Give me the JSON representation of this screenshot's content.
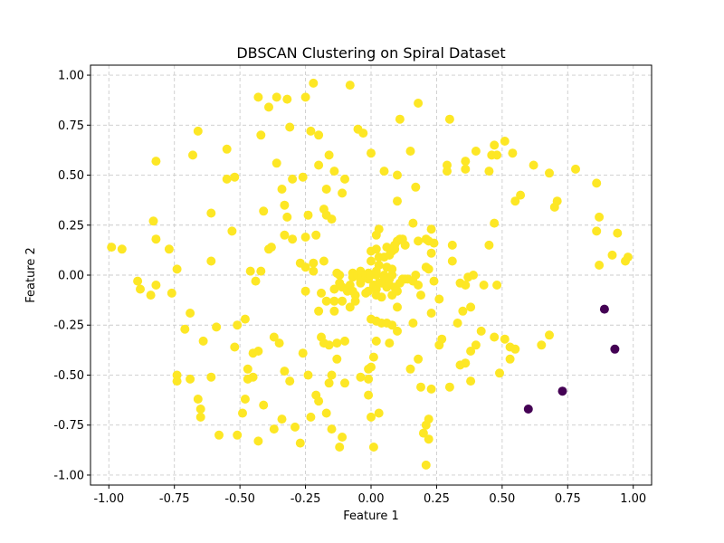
{
  "chart_data": {
    "type": "scatter",
    "title": "DBSCAN Clustering on Spiral Dataset",
    "xlabel": "Feature 1",
    "ylabel": "Feature 2",
    "xlim": [
      -1.07,
      1.07
    ],
    "ylim": [
      -1.05,
      1.05
    ],
    "xticks": [
      "-1.00",
      "-0.75",
      "-0.50",
      "-0.25",
      "0.00",
      "0.25",
      "0.50",
      "0.75",
      "1.00"
    ],
    "yticks": [
      "-1.00",
      "-0.75",
      "-0.50",
      "-0.25",
      "0.00",
      "0.25",
      "0.50",
      "0.75",
      "1.00"
    ],
    "grid": true,
    "legend": false,
    "series": [
      {
        "color": "#fde725",
        "points": [
          [
            -0.99,
            0.14
          ],
          [
            -0.95,
            0.13
          ],
          [
            -0.89,
            -0.03
          ],
          [
            -0.88,
            -0.07
          ],
          [
            -0.84,
            -0.1
          ],
          [
            -0.83,
            0.27
          ],
          [
            -0.82,
            0.18
          ],
          [
            -0.82,
            -0.05
          ],
          [
            -0.82,
            0.57
          ],
          [
            -0.77,
            0.13
          ],
          [
            -0.76,
            -0.09
          ],
          [
            -0.74,
            0.03
          ],
          [
            -0.74,
            -0.5
          ],
          [
            -0.74,
            -0.53
          ],
          [
            -0.71,
            -0.27
          ],
          [
            -0.69,
            -0.52
          ],
          [
            -0.69,
            -0.19
          ],
          [
            -0.68,
            0.6
          ],
          [
            -0.66,
            0.72
          ],
          [
            -0.66,
            -0.62
          ],
          [
            -0.65,
            -0.71
          ],
          [
            -0.65,
            -0.67
          ],
          [
            -0.64,
            -0.33
          ],
          [
            -0.61,
            0.31
          ],
          [
            -0.61,
            0.07
          ],
          [
            -0.61,
            -0.51
          ],
          [
            -0.59,
            -0.26
          ],
          [
            -0.58,
            -0.8
          ],
          [
            -0.55,
            0.48
          ],
          [
            -0.55,
            0.63
          ],
          [
            -0.53,
            0.22
          ],
          [
            -0.52,
            0.49
          ],
          [
            -0.52,
            -0.36
          ],
          [
            -0.51,
            -0.8
          ],
          [
            -0.51,
            -0.25
          ],
          [
            -0.49,
            -0.69
          ],
          [
            -0.48,
            -0.22
          ],
          [
            -0.48,
            -0.62
          ],
          [
            -0.47,
            -0.47
          ],
          [
            -0.47,
            -0.52
          ],
          [
            -0.46,
            0.02
          ],
          [
            -0.45,
            -0.51
          ],
          [
            -0.45,
            -0.39
          ],
          [
            -0.44,
            -0.03
          ],
          [
            -0.43,
            -0.83
          ],
          [
            -0.43,
            0.89
          ],
          [
            -0.43,
            -0.38
          ],
          [
            -0.42,
            0.7
          ],
          [
            -0.42,
            0.02
          ],
          [
            -0.41,
            0.32
          ],
          [
            -0.41,
            -0.65
          ],
          [
            -0.39,
            0.13
          ],
          [
            -0.39,
            0.84
          ],
          [
            -0.38,
            0.14
          ],
          [
            -0.37,
            -0.77
          ],
          [
            -0.37,
            -0.31
          ],
          [
            -0.36,
            0.89
          ],
          [
            -0.36,
            0.56
          ],
          [
            -0.35,
            -0.34
          ],
          [
            -0.34,
            0.43
          ],
          [
            -0.34,
            -0.72
          ],
          [
            -0.33,
            0.2
          ],
          [
            -0.33,
            -0.48
          ],
          [
            -0.33,
            0.35
          ],
          [
            -0.32,
            0.88
          ],
          [
            -0.32,
            0.29
          ],
          [
            -0.31,
            -0.53
          ],
          [
            -0.31,
            0.74
          ],
          [
            -0.3,
            0.48
          ],
          [
            -0.3,
            0.18
          ],
          [
            -0.29,
            -0.76
          ],
          [
            -0.27,
            0.06
          ],
          [
            -0.27,
            -0.84
          ],
          [
            -0.26,
            0.49
          ],
          [
            -0.26,
            -0.39
          ],
          [
            -0.25,
            0.04
          ],
          [
            -0.25,
            0.89
          ],
          [
            -0.25,
            -0.08
          ],
          [
            -0.25,
            0.19
          ],
          [
            -0.24,
            0.3
          ],
          [
            -0.24,
            -0.5
          ],
          [
            -0.23,
            0.72
          ],
          [
            -0.23,
            -0.71
          ],
          [
            -0.22,
            0.06
          ],
          [
            -0.22,
            0.02
          ],
          [
            -0.22,
            0.96
          ],
          [
            -0.21,
            0.2
          ],
          [
            -0.21,
            -0.6
          ],
          [
            -0.2,
            -0.18
          ],
          [
            -0.2,
            0.55
          ],
          [
            -0.2,
            -0.63
          ],
          [
            -0.2,
            0.7
          ],
          [
            -0.19,
            -0.09
          ],
          [
            -0.19,
            -0.31
          ],
          [
            -0.18,
            0.33
          ],
          [
            -0.18,
            -0.34
          ],
          [
            -0.18,
            0.07
          ],
          [
            -0.17,
            0.3
          ],
          [
            -0.17,
            0.43
          ],
          [
            -0.17,
            -0.13
          ],
          [
            -0.17,
            -0.69
          ],
          [
            -0.16,
            -0.35
          ],
          [
            -0.16,
            -0.54
          ],
          [
            -0.16,
            0.6
          ],
          [
            -0.15,
            0.28
          ],
          [
            -0.15,
            -0.77
          ],
          [
            -0.15,
            -0.5
          ],
          [
            -0.14,
            -0.18
          ],
          [
            -0.14,
            -0.07
          ],
          [
            -0.14,
            0.52
          ],
          [
            -0.14,
            -0.13
          ],
          [
            -0.13,
            0.01
          ],
          [
            -0.13,
            -0.42
          ],
          [
            -0.13,
            -0.34
          ],
          [
            -0.12,
            -0.86
          ],
          [
            -0.12,
            -0.04
          ],
          [
            -0.12,
            0.0
          ],
          [
            -0.11,
            0.41
          ],
          [
            -0.11,
            -0.13
          ],
          [
            -0.11,
            -0.06
          ],
          [
            -0.11,
            -0.81
          ],
          [
            -0.1,
            0.48
          ],
          [
            -0.1,
            -0.33
          ],
          [
            -0.1,
            -0.54
          ],
          [
            -0.09,
            -0.08
          ],
          [
            -0.08,
            0.95
          ],
          [
            -0.08,
            -0.16
          ],
          [
            -0.08,
            -0.05
          ],
          [
            -0.07,
            0.01
          ],
          [
            -0.07,
            -0.01
          ],
          [
            -0.07,
            -0.08
          ],
          [
            -0.06,
            -0.13
          ],
          [
            -0.06,
            -0.1
          ],
          [
            -0.05,
            -0.0
          ],
          [
            -0.05,
            0.73
          ],
          [
            -0.04,
            -0.51
          ],
          [
            -0.04,
            -0.04
          ],
          [
            -0.04,
            0.02
          ],
          [
            -0.04,
            -0.02
          ],
          [
            -0.03,
            0.71
          ],
          [
            -0.02,
            -0.09
          ],
          [
            -0.02,
            0.0
          ],
          [
            -0.01,
            -0.47
          ],
          [
            -0.01,
            -0.6
          ],
          [
            -0.01,
            -0.52
          ],
          [
            -0.01,
            0.01
          ],
          [
            -0.01,
            -0.02
          ],
          [
            -0.01,
            -0.08
          ],
          [
            -0.0,
            -0.71
          ],
          [
            0.0,
            -0.22
          ],
          [
            0.0,
            0.07
          ],
          [
            0.0,
            -0.0
          ],
          [
            0.0,
            0.61
          ],
          [
            0.0,
            -0.46
          ],
          [
            0.0,
            0.12
          ],
          [
            0.01,
            -0.06
          ],
          [
            0.01,
            -0.86
          ],
          [
            0.01,
            -0.05
          ],
          [
            0.01,
            -0.41
          ],
          [
            0.02,
            -0.33
          ],
          [
            0.02,
            0.0
          ],
          [
            0.02,
            0.13
          ],
          [
            0.02,
            -0.23
          ],
          [
            0.02,
            0.2
          ],
          [
            0.02,
            -0.07
          ],
          [
            0.02,
            -0.1
          ],
          [
            0.02,
            0.02
          ],
          [
            0.03,
            -0.04
          ],
          [
            0.03,
            -0.69
          ],
          [
            0.03,
            0.23
          ],
          [
            0.03,
            0.05
          ],
          [
            0.03,
            0.09
          ],
          [
            0.04,
            -0.24
          ],
          [
            0.04,
            -0.04
          ],
          [
            0.04,
            -0.11
          ],
          [
            0.05,
            0.09
          ],
          [
            0.05,
            -0.0
          ],
          [
            0.05,
            -0.02
          ],
          [
            0.05,
            0.52
          ],
          [
            0.06,
            0.14
          ],
          [
            0.06,
            -0.24
          ],
          [
            0.06,
            -0.06
          ],
          [
            0.06,
            0.04
          ],
          [
            0.07,
            -0.05
          ],
          [
            0.07,
            -0.34
          ],
          [
            0.07,
            0.1
          ],
          [
            0.07,
            -0.02
          ],
          [
            0.08,
            -0.25
          ],
          [
            0.08,
            0.0
          ],
          [
            0.08,
            0.12
          ],
          [
            0.08,
            -0.1
          ],
          [
            0.08,
            0.03
          ],
          [
            0.09,
            0.13
          ],
          [
            0.09,
            0.15
          ],
          [
            0.09,
            -0.06
          ],
          [
            0.1,
            -0.08
          ],
          [
            0.1,
            -0.28
          ],
          [
            0.1,
            0.17
          ],
          [
            0.1,
            0.37
          ],
          [
            0.1,
            0.5
          ],
          [
            0.1,
            -0.16
          ],
          [
            0.11,
            0.78
          ],
          [
            0.11,
            -0.04
          ],
          [
            0.11,
            0.18
          ],
          [
            0.12,
            0.18
          ],
          [
            0.12,
            -0.02
          ],
          [
            0.13,
            -0.02
          ],
          [
            0.13,
            0.15
          ],
          [
            0.14,
            -0.02
          ],
          [
            0.15,
            0.62
          ],
          [
            0.15,
            -0.47
          ],
          [
            0.16,
            -0.24
          ],
          [
            0.16,
            -0.03
          ],
          [
            0.16,
            0.26
          ],
          [
            0.17,
            0.0
          ],
          [
            0.17,
            0.44
          ],
          [
            0.18,
            0.17
          ],
          [
            0.18,
            -0.42
          ],
          [
            0.18,
            0.86
          ],
          [
            0.18,
            -0.05
          ],
          [
            0.19,
            -0.56
          ],
          [
            0.19,
            -0.1
          ],
          [
            0.2,
            -0.79
          ],
          [
            0.21,
            -0.75
          ],
          [
            0.21,
            0.18
          ],
          [
            0.21,
            -0.95
          ],
          [
            0.21,
            0.04
          ],
          [
            0.22,
            0.03
          ],
          [
            0.22,
            -0.82
          ],
          [
            0.22,
            0.17
          ],
          [
            0.22,
            -0.72
          ],
          [
            0.23,
            -0.19
          ],
          [
            0.23,
            0.23
          ],
          [
            0.23,
            -0.57
          ],
          [
            0.23,
            0.11
          ],
          [
            0.24,
            0.16
          ],
          [
            0.24,
            -0.03
          ],
          [
            0.26,
            -0.35
          ],
          [
            0.26,
            -0.12
          ],
          [
            0.27,
            -0.32
          ],
          [
            0.29,
            0.55
          ],
          [
            0.29,
            0.52
          ],
          [
            0.3,
            -0.56
          ],
          [
            0.3,
            0.78
          ],
          [
            0.31,
            0.07
          ],
          [
            0.31,
            0.15
          ],
          [
            0.33,
            -0.24
          ],
          [
            0.34,
            -0.04
          ],
          [
            0.34,
            -0.45
          ],
          [
            0.35,
            -0.18
          ],
          [
            0.36,
            0.57
          ],
          [
            0.36,
            -0.44
          ],
          [
            0.36,
            -0.05
          ],
          [
            0.36,
            0.53
          ],
          [
            0.37,
            -0.01
          ],
          [
            0.38,
            -0.53
          ],
          [
            0.38,
            -0.16
          ],
          [
            0.38,
            -0.38
          ],
          [
            0.39,
            0.0
          ],
          [
            0.4,
            0.62
          ],
          [
            0.4,
            -0.35
          ],
          [
            0.42,
            -0.28
          ],
          [
            0.43,
            -0.05
          ],
          [
            0.45,
            0.15
          ],
          [
            0.45,
            0.52
          ],
          [
            0.46,
            0.6
          ],
          [
            0.47,
            -0.31
          ],
          [
            0.47,
            0.26
          ],
          [
            0.47,
            0.65
          ],
          [
            0.48,
            0.6
          ],
          [
            0.48,
            -0.05
          ],
          [
            0.49,
            -0.49
          ],
          [
            0.51,
            -0.32
          ],
          [
            0.51,
            0.67
          ],
          [
            0.53,
            -0.42
          ],
          [
            0.53,
            -0.36
          ],
          [
            0.54,
            0.61
          ],
          [
            0.55,
            -0.37
          ],
          [
            0.55,
            0.37
          ],
          [
            0.57,
            0.4
          ],
          [
            0.62,
            0.55
          ],
          [
            0.65,
            -0.35
          ],
          [
            0.68,
            0.51
          ],
          [
            0.68,
            -0.3
          ],
          [
            0.7,
            0.34
          ],
          [
            0.71,
            0.37
          ],
          [
            0.78,
            0.53
          ],
          [
            0.86,
            0.46
          ],
          [
            0.86,
            0.22
          ],
          [
            0.87,
            0.05
          ],
          [
            0.87,
            0.29
          ],
          [
            0.92,
            0.1
          ],
          [
            0.94,
            0.21
          ],
          [
            0.97,
            0.07
          ],
          [
            0.98,
            0.09
          ]
        ]
      },
      {
        "color": "#440154",
        "points": [
          [
            0.89,
            -0.17
          ],
          [
            0.93,
            -0.37
          ],
          [
            0.73,
            -0.58
          ],
          [
            0.6,
            -0.67
          ]
        ]
      }
    ]
  }
}
